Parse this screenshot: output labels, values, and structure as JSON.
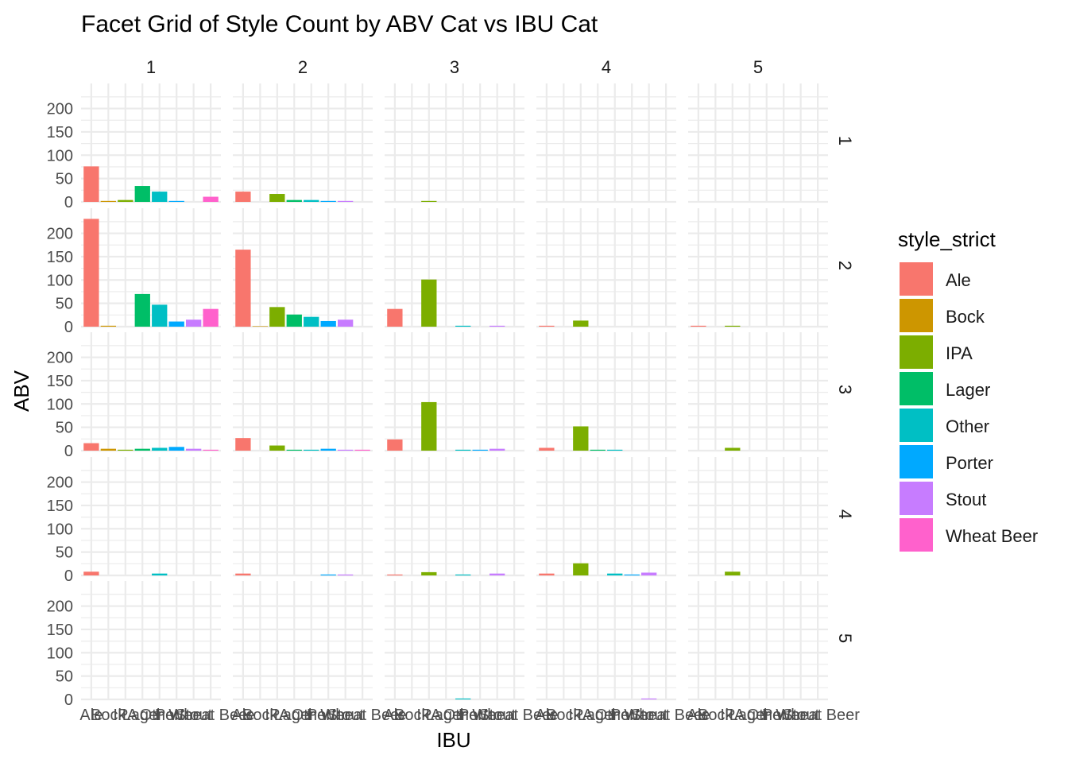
{
  "chart_data": {
    "type": "bar",
    "title": "Facet Grid of Style Count by ABV Cat vs IBU Cat",
    "xlabel": "IBU",
    "ylabel": "ABV",
    "ylim": [
      0,
      235
    ],
    "y_ticks": [
      0,
      50,
      100,
      150,
      200
    ],
    "grid": true,
    "col_facets": [
      "1",
      "2",
      "3",
      "4",
      "5"
    ],
    "row_facets": [
      "1",
      "2",
      "3",
      "4",
      "5"
    ],
    "categories": [
      "Ale",
      "Bock",
      "IPA",
      "Lager",
      "Other",
      "Porter",
      "Stout",
      "Wheat Beer"
    ],
    "colors": [
      "#F8766D",
      "#CD9600",
      "#7CAE00",
      "#00BE67",
      "#00BFC4",
      "#00A9FF",
      "#C77CFF",
      "#FF61CC"
    ],
    "legend": {
      "title": "style_strict",
      "position": "right",
      "items": [
        "Ale",
        "Bock",
        "IPA",
        "Lager",
        "Other",
        "Porter",
        "Stout",
        "Wheat Beer"
      ]
    },
    "panels": [
      [
        [
          76,
          2,
          4,
          34,
          22,
          2,
          0,
          11
        ],
        [
          22,
          0,
          17,
          4,
          4,
          2,
          2,
          0
        ],
        [
          0,
          0,
          2,
          0,
          0,
          0,
          0,
          0
        ],
        [
          0,
          0,
          0,
          0,
          0,
          0,
          0,
          0
        ],
        [
          0,
          0,
          0,
          0,
          0,
          0,
          0,
          0
        ]
      ],
      [
        [
          231,
          2,
          0,
          70,
          47,
          11,
          15,
          38
        ],
        [
          165,
          1,
          42,
          26,
          21,
          12,
          15,
          0
        ],
        [
          38,
          0,
          101,
          0,
          2,
          0,
          2,
          0
        ],
        [
          2,
          0,
          13,
          0,
          0,
          0,
          0,
          0
        ],
        [
          2,
          0,
          2,
          0,
          0,
          0,
          0,
          0
        ]
      ],
      [
        [
          16,
          4,
          2,
          4,
          6,
          8,
          4,
          2
        ],
        [
          27,
          0,
          11,
          2,
          2,
          4,
          2,
          2
        ],
        [
          24,
          0,
          104,
          0,
          2,
          2,
          4,
          0
        ],
        [
          6,
          0,
          52,
          2,
          2,
          0,
          0,
          0
        ],
        [
          0,
          0,
          6,
          0,
          0,
          0,
          0,
          0
        ]
      ],
      [
        [
          8,
          0,
          0,
          0,
          4,
          0,
          0,
          0
        ],
        [
          4,
          0,
          0,
          0,
          0,
          2,
          2,
          0
        ],
        [
          2,
          0,
          7,
          0,
          2,
          0,
          4,
          0
        ],
        [
          4,
          0,
          26,
          0,
          4,
          2,
          6,
          0
        ],
        [
          0,
          0,
          8,
          0,
          0,
          0,
          0,
          0
        ]
      ],
      [
        [
          0,
          0,
          0,
          0,
          0,
          0,
          0,
          0
        ],
        [
          0,
          0,
          0,
          0,
          0,
          0,
          0,
          0
        ],
        [
          0,
          0,
          0,
          0,
          2,
          0,
          0,
          0
        ],
        [
          0,
          0,
          0,
          0,
          0,
          0,
          2,
          0
        ],
        [
          0,
          0,
          0,
          0,
          0,
          0,
          0,
          0
        ]
      ]
    ]
  }
}
